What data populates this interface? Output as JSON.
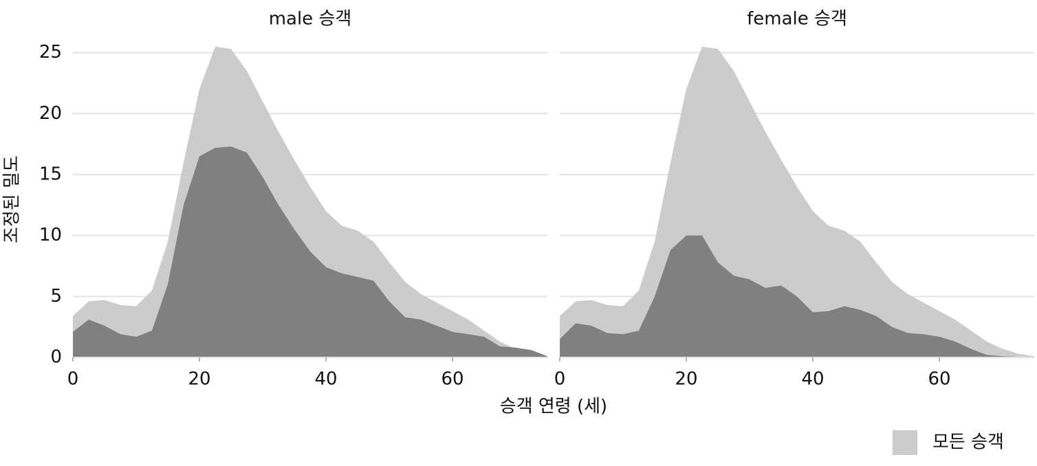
{
  "chart_data": {
    "type": "area",
    "xlabel": "승객 연령 (세)",
    "ylabel": "조정된 밀도",
    "xlim": [
      0,
      75
    ],
    "xticks": [
      0,
      20,
      40,
      60
    ],
    "ylim": [
      0,
      26.5
    ],
    "yticks": [
      0,
      5,
      10,
      15,
      20,
      25
    ],
    "grid": true,
    "legend": "bottom-right",
    "x": [
      0,
      2.5,
      5,
      7.5,
      10,
      12.5,
      15,
      17.5,
      20,
      22.5,
      25,
      27.5,
      30,
      32.5,
      35,
      37.5,
      40,
      42.5,
      45,
      47.5,
      50,
      52.5,
      55,
      57.5,
      60,
      62.5,
      65,
      67.5,
      70,
      72.5,
      75
    ],
    "facets": [
      {
        "title": "male 승객",
        "series": [
          {
            "name": "모든 승객",
            "color": "#cccccc",
            "values": [
              3.4,
              4.6,
              4.7,
              4.3,
              4.2,
              5.5,
              9.5,
              16,
              22,
              25.5,
              25.3,
              23.5,
              21,
              18.5,
              16.2,
              14,
              12,
              10.8,
              10.4,
              9.5,
              7.8,
              6.2,
              5.2,
              4.5,
              3.8,
              3.1,
              2.2,
              1.3,
              0.7,
              0.3,
              0.1
            ]
          },
          {
            "color": "#808080",
            "values": [
              2.1,
              3.1,
              2.6,
              1.9,
              1.7,
              2.2,
              6,
              12.5,
              16.5,
              17.2,
              17.3,
              16.8,
              14.8,
              12.5,
              10.5,
              8.7,
              7.4,
              6.9,
              6.6,
              6.3,
              4.6,
              3.3,
              3.1,
              2.6,
              2.1,
              1.9,
              1.7,
              0.9,
              0.8,
              0.6,
              0.1
            ]
          }
        ]
      },
      {
        "title": "female 승객",
        "series": [
          {
            "name": "모든 승객",
            "color": "#cccccc",
            "values": [
              3.4,
              4.6,
              4.7,
              4.3,
              4.2,
              5.5,
              9.5,
              16,
              22,
              25.5,
              25.3,
              23.5,
              21,
              18.5,
              16.2,
              14,
              12,
              10.8,
              10.4,
              9.5,
              7.8,
              6.2,
              5.2,
              4.5,
              3.8,
              3.1,
              2.2,
              1.3,
              0.7,
              0.3,
              0.1
            ]
          },
          {
            "color": "#808080",
            "values": [
              1.5,
              2.8,
              2.6,
              2.0,
              1.9,
              2.2,
              5.0,
              8.8,
              10.0,
              10.0,
              7.8,
              6.7,
              6.4,
              5.7,
              5.9,
              5.0,
              3.7,
              3.8,
              4.2,
              3.9,
              3.4,
              2.5,
              2.0,
              1.9,
              1.7,
              1.3,
              0.7,
              0.2,
              0.1,
              0.05,
              0
            ]
          }
        ]
      }
    ]
  }
}
